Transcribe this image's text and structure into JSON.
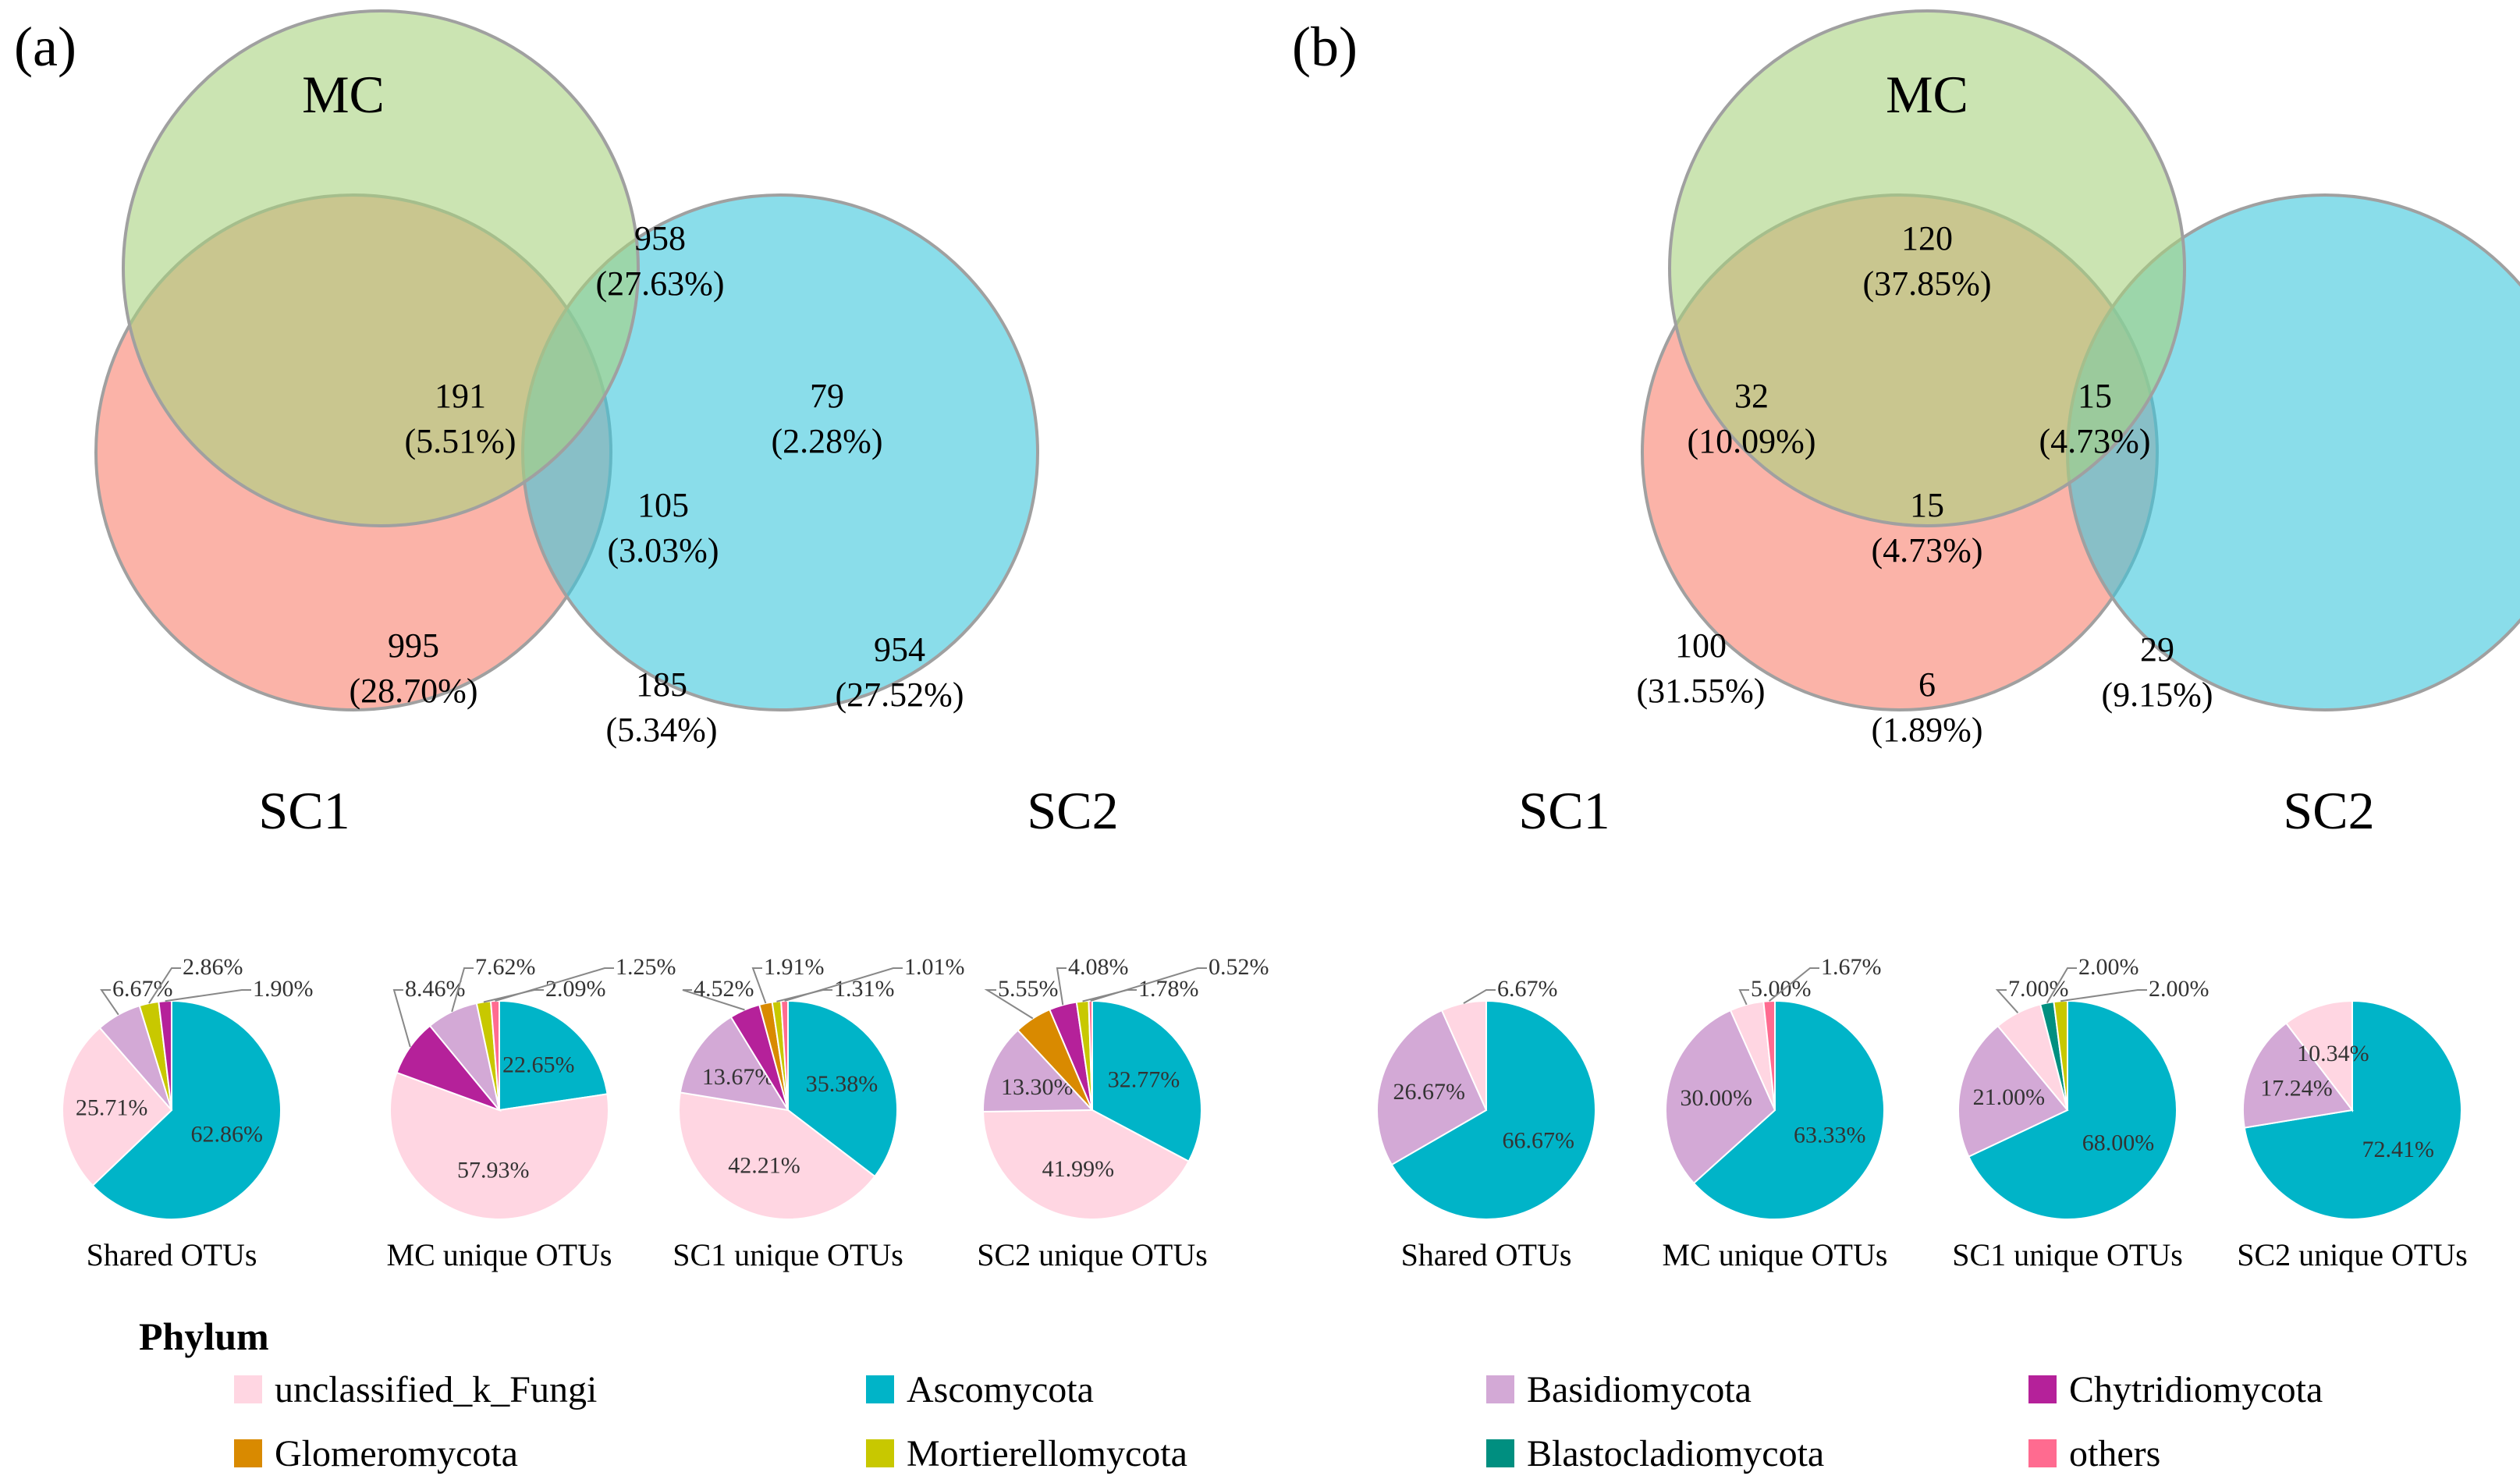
{
  "chart_data": [
    {
      "type": "venn",
      "panel": "(a)",
      "sets": [
        "MC",
        "SC1",
        "SC2"
      ],
      "regions": {
        "MC_only": {
          "count": "958",
          "pct": "(27.63%)"
        },
        "SC1_only": {
          "count": "995",
          "pct": "(28.70%)"
        },
        "SC2_only": {
          "count": "954",
          "pct": "(27.52%)"
        },
        "MC_SC1": {
          "count": "191",
          "pct": "(5.51%)"
        },
        "MC_SC2": {
          "count": "79",
          "pct": "(2.28%)"
        },
        "SC1_SC2": {
          "count": "185",
          "pct": "(5.34%)"
        },
        "all": {
          "count": "105",
          "pct": "(3.03%)"
        }
      }
    },
    {
      "type": "venn",
      "panel": "(b)",
      "sets": [
        "MC",
        "SC1",
        "SC2"
      ],
      "regions": {
        "MC_only": {
          "count": "120",
          "pct": "(37.85%)"
        },
        "SC1_only": {
          "count": "100",
          "pct": "(31.55%)"
        },
        "SC2_only": {
          "count": "29",
          "pct": "(9.15%)"
        },
        "MC_SC1": {
          "count": "32",
          "pct": "(10.09%)"
        },
        "MC_SC2": {
          "count": "15",
          "pct": "(4.73%)"
        },
        "SC1_SC2": {
          "count": "6",
          "pct": "(1.89%)"
        },
        "all": {
          "count": "15",
          "pct": "(4.73%)"
        }
      }
    },
    {
      "type": "pie",
      "panel": "(a)",
      "pies": [
        {
          "title": "Shared OTUs",
          "slices": [
            {
              "cat": "Ascomycota",
              "value": 62.86,
              "label": "62.86%"
            },
            {
              "cat": "unclassified_k_Fungi",
              "value": 25.71,
              "label": "25.71%"
            },
            {
              "cat": "Basidiomycota",
              "value": 6.67,
              "label": "6.67%"
            },
            {
              "cat": "Mortierellomycota",
              "value": 2.86,
              "label": "2.86%"
            },
            {
              "cat": "Chytridiomycota",
              "value": 1.9,
              "label": "1.90%"
            }
          ]
        },
        {
          "title": "MC unique OTUs",
          "slices": [
            {
              "cat": "unclassified_k_Fungi",
              "value": 57.93,
              "label": "57.93%"
            },
            {
              "cat": "Ascomycota",
              "value": 22.65,
              "label": "22.65%"
            },
            {
              "cat": "Chytridiomycota",
              "value": 8.46,
              "label": "8.46%"
            },
            {
              "cat": "Basidiomycota",
              "value": 7.62,
              "label": "7.62%"
            },
            {
              "cat": "Mortierellomycota",
              "value": 2.09,
              "label": "2.09%"
            },
            {
              "cat": "others",
              "value": 1.25,
              "label": "1.25%"
            }
          ]
        },
        {
          "title": "SC1 unique OTUs",
          "slices": [
            {
              "cat": "unclassified_k_Fungi",
              "value": 42.21,
              "label": "42.21%"
            },
            {
              "cat": "Ascomycota",
              "value": 35.38,
              "label": "35.38%"
            },
            {
              "cat": "Basidiomycota",
              "value": 13.67,
              "label": "13.67%"
            },
            {
              "cat": "Chytridiomycota",
              "value": 4.52,
              "label": "4.52%"
            },
            {
              "cat": "Glomeromycota",
              "value": 1.91,
              "label": "1.91%"
            },
            {
              "cat": "Mortierellomycota",
              "value": 1.31,
              "label": "1.31%"
            },
            {
              "cat": "others",
              "value": 1.01,
              "label": "1.01%"
            }
          ]
        },
        {
          "title": "SC2 unique OTUs",
          "slices": [
            {
              "cat": "unclassified_k_Fungi",
              "value": 41.99,
              "label": "41.99%"
            },
            {
              "cat": "Ascomycota",
              "value": 32.77,
              "label": "32.77%"
            },
            {
              "cat": "Basidiomycota",
              "value": 13.3,
              "label": "13.30%"
            },
            {
              "cat": "Glomeromycota",
              "value": 5.55,
              "label": "5.55%"
            },
            {
              "cat": "Chytridiomycota",
              "value": 4.08,
              "label": "4.08%"
            },
            {
              "cat": "Mortierellomycota",
              "value": 1.78,
              "label": "1.78%"
            },
            {
              "cat": "others",
              "value": 0.52,
              "label": "0.52%"
            }
          ]
        }
      ]
    },
    {
      "type": "pie",
      "panel": "(b)",
      "pies": [
        {
          "title": "Shared OTUs",
          "slices": [
            {
              "cat": "Ascomycota",
              "value": 66.67,
              "label": "66.67%"
            },
            {
              "cat": "Basidiomycota",
              "value": 26.67,
              "label": "26.67%"
            },
            {
              "cat": "unclassified_k_Fungi",
              "value": 6.67,
              "label": "6.67%"
            }
          ]
        },
        {
          "title": "MC unique OTUs",
          "slices": [
            {
              "cat": "Ascomycota",
              "value": 63.33,
              "label": "63.33%"
            },
            {
              "cat": "Basidiomycota",
              "value": 30.0,
              "label": "30.00%"
            },
            {
              "cat": "unclassified_k_Fungi",
              "value": 5.0,
              "label": "5.00%"
            },
            {
              "cat": "others",
              "value": 1.67,
              "label": "1.67%"
            }
          ]
        },
        {
          "title": "SC1 unique OTUs",
          "slices": [
            {
              "cat": "Ascomycota",
              "value": 68.0,
              "label": "68.00%"
            },
            {
              "cat": "Basidiomycota",
              "value": 21.0,
              "label": "21.00%"
            },
            {
              "cat": "unclassified_k_Fungi",
              "value": 7.0,
              "label": "7.00%"
            },
            {
              "cat": "Blastocladiomycota",
              "value": 2.0,
              "label": "2.00%"
            },
            {
              "cat": "Mortierellomycota",
              "value": 2.0,
              "label": "2.00%"
            }
          ]
        },
        {
          "title": "SC2 unique OTUs",
          "slices": [
            {
              "cat": "Ascomycota",
              "value": 72.41,
              "label": "72.41%"
            },
            {
              "cat": "Basidiomycota",
              "value": 17.24,
              "label": "17.24%"
            },
            {
              "cat": "unclassified_k_Fungi",
              "value": 10.34,
              "label": "10.34%"
            }
          ]
        }
      ]
    }
  ],
  "legend": {
    "title": "Phylum",
    "items": [
      {
        "name": "unclassified_k_Fungi",
        "color": "#FFD6E2"
      },
      {
        "name": "Ascomycota",
        "color": "#00B4C8"
      },
      {
        "name": "Basidiomycota",
        "color": "#D3A9D6"
      },
      {
        "name": "Chytridiomycota",
        "color": "#B5219A"
      },
      {
        "name": "Glomeromycota",
        "color": "#D98A00"
      },
      {
        "name": "Mortierellomycota",
        "color": "#C8C800"
      },
      {
        "name": "Blastocladiomycota",
        "color": "#008F80"
      },
      {
        "name": "others",
        "color": "#FF6B90"
      }
    ]
  },
  "colors": {
    "venn_MC": "#A8D27F",
    "venn_SC1": "#F8806E",
    "venn_SC2": "#3CC6DC",
    "circle_stroke": "#A0A0A0",
    "pie_stroke": "#FFFFFF",
    "leader": "#888888"
  }
}
